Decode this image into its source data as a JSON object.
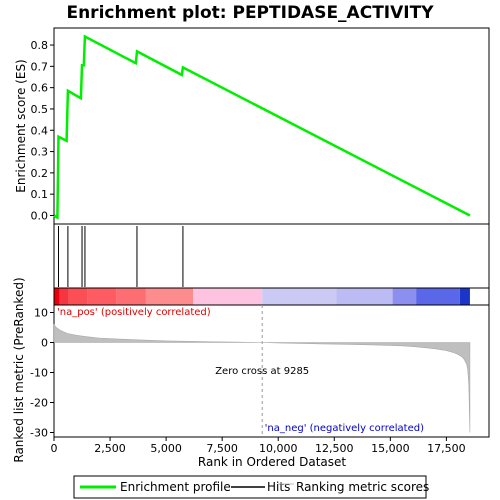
{
  "chart_data": {
    "type": "line",
    "title": "Enrichment plot: PEPTIDASE_ACTIVITY",
    "xlabel": "Rank in Ordered Dataset",
    "ylabel_top": "Enrichment score (ES)",
    "ylabel_bottom": "Ranked list metric (PreRanked)",
    "x_ticks": [
      "0",
      "2,500",
      "5,000",
      "7,500",
      "10,000",
      "12,500",
      "15,000",
      "17,500"
    ],
    "x_tick_values": [
      0,
      2500,
      5000,
      7500,
      10000,
      12500,
      15000,
      17500
    ],
    "xlim": [
      0,
      19400
    ],
    "es_ticks": [
      "0.0",
      "0.1",
      "0.2",
      "0.3",
      "0.4",
      "0.5",
      "0.6",
      "0.7",
      "0.8"
    ],
    "es_tick_values": [
      0,
      0.1,
      0.2,
      0.3,
      0.4,
      0.5,
      0.6,
      0.7,
      0.8
    ],
    "es_ylim": [
      -0.04,
      0.88
    ],
    "metric_ticks": [
      "10",
      "0",
      "-10",
      "-20",
      "-30"
    ],
    "metric_tick_values": [
      10,
      0,
      -10,
      -20,
      -30
    ],
    "metric_ylim": [
      -31.5,
      12.5
    ],
    "enrichment_profile": {
      "x": [
        0,
        150,
        200,
        560,
        620,
        1200,
        1250,
        1330,
        1380,
        3650,
        3700,
        5700,
        5750,
        18550
      ],
      "y": [
        0,
        -0.01,
        0.37,
        0.35,
        0.585,
        0.55,
        0.705,
        0.705,
        0.84,
        0.715,
        0.77,
        0.66,
        0.695,
        0
      ]
    },
    "hits": [
      200,
      620,
      1250,
      1380,
      3700,
      5750
    ],
    "metric_curve": {
      "x": [
        0,
        100,
        300,
        600,
        1000,
        1500,
        2000,
        3000,
        4000,
        5000,
        6000,
        7000,
        8000,
        9285,
        10000,
        11000,
        12000,
        13000,
        14000,
        15000,
        15500,
        16000,
        16500,
        17000,
        17500,
        17800,
        18000,
        18200,
        18300,
        18400,
        18450,
        18500,
        18550
      ],
      "y": [
        6,
        5,
        4,
        3,
        2.4,
        1.9,
        1.5,
        1.1,
        0.8,
        0.55,
        0.4,
        0.25,
        0.12,
        0,
        -0.15,
        -0.3,
        -0.45,
        -0.6,
        -0.75,
        -0.95,
        -1.1,
        -1.35,
        -1.7,
        -2.1,
        -2.7,
        -3.3,
        -3.9,
        -4.8,
        -5.7,
        -7.2,
        -9,
        -14,
        -30
      ]
    },
    "zero_cross_label": "Zero cross at 9285",
    "zero_cross": 9285,
    "pos_label": "'na_pos' (positively correlated)",
    "neg_label": "'na_neg' (negatively correlated)",
    "heat_segments": [
      {
        "x0": 0,
        "x1": 250,
        "color": "#e8000b"
      },
      {
        "x0": 250,
        "x1": 650,
        "color": "#f53540"
      },
      {
        "x0": 650,
        "x1": 1500,
        "color": "#fc4e55"
      },
      {
        "x0": 1500,
        "x1": 2800,
        "color": "#fe5b62"
      },
      {
        "x0": 2800,
        "x1": 4100,
        "color": "#fd6e73"
      },
      {
        "x0": 4100,
        "x1": 6200,
        "color": "#fd8c8e"
      },
      {
        "x0": 6200,
        "x1": 9285,
        "color": "#fdc3e0"
      },
      {
        "x0": 9285,
        "x1": 12600,
        "color": "#cbcaf4"
      },
      {
        "x0": 12600,
        "x1": 15100,
        "color": "#bdbbf3"
      },
      {
        "x0": 15100,
        "x1": 16150,
        "color": "#8d8ff0"
      },
      {
        "x0": 16150,
        "x1": 18100,
        "color": "#5a67e8"
      },
      {
        "x0": 18100,
        "x1": 18550,
        "color": "#1b35c8"
      }
    ],
    "legend": {
      "placement": "bottom",
      "items": [
        {
          "label": "Enrichment profile",
          "color": "#00ee00"
        },
        {
          "label": "Hits",
          "color": "#000000"
        },
        {
          "label": "Ranking metric scores",
          "color": "#bfbfbf"
        }
      ]
    }
  }
}
